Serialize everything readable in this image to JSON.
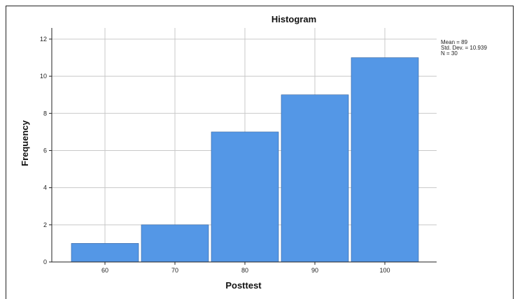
{
  "chart_data": {
    "type": "bar",
    "title": "Histogram",
    "xlabel": "Posttest",
    "ylabel": "Frequency",
    "categories": [
      "60",
      "70",
      "80",
      "90",
      "100"
    ],
    "values": [
      1,
      2,
      7,
      9,
      11
    ],
    "ylim": [
      0,
      12.6
    ],
    "yticks": [
      0,
      2,
      4,
      6,
      8,
      10,
      12
    ],
    "grid": true,
    "bar_color": "#5497E6",
    "stats": {
      "mean": "Mean = 89",
      "std_dev": "Std. Dev. = 10.939",
      "n": "N = 30"
    }
  }
}
